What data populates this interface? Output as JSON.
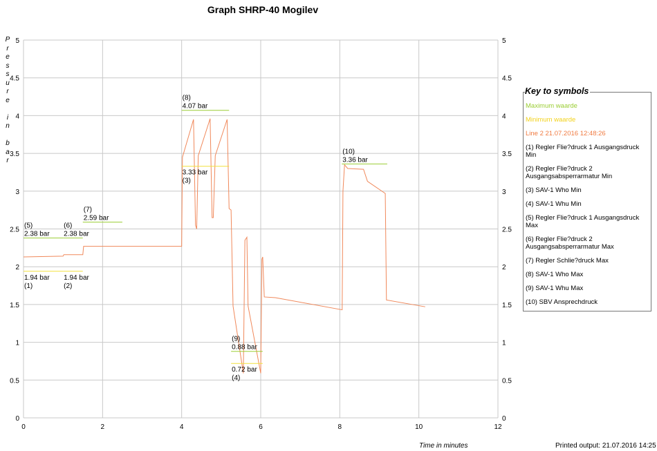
{
  "chart_data": {
    "type": "line",
    "title": "Graph SHRP-40 Mogilev",
    "xlabel": "Time in minutes",
    "ylabel": "Pressure in bar",
    "xlim": [
      0,
      12
    ],
    "ylim": [
      0,
      5
    ],
    "xticks": [
      0,
      2,
      4,
      6,
      8,
      10,
      12
    ],
    "yticks": [
      0,
      0.5,
      1,
      1.5,
      2,
      2.5,
      3,
      3.5,
      4,
      4.5,
      5
    ],
    "grid": true,
    "legend_placement": "right",
    "colors": {
      "max": "#9acd32",
      "min": "#f2e03c",
      "line": "#f0885a"
    },
    "series": [
      {
        "name": "Line 2 21.07.2016 12:48:26",
        "x": [
          0,
          1.0,
          1.02,
          1.5,
          1.52,
          4.0,
          4.02,
          4.3,
          4.35,
          4.38,
          4.42,
          4.72,
          4.77,
          4.8,
          4.85,
          5.15,
          5.2,
          5.25,
          5.3,
          5.56,
          5.6,
          5.65,
          5.68,
          6.0,
          6.03,
          6.05,
          6.09,
          6.37,
          8.06,
          8.08,
          8.12,
          8.2,
          8.6,
          8.7,
          9.15,
          9.18,
          10.16
        ],
        "y": [
          2.13,
          2.14,
          2.16,
          2.16,
          2.27,
          2.27,
          3.45,
          3.95,
          2.55,
          2.5,
          3.47,
          3.96,
          2.65,
          2.65,
          3.47,
          3.95,
          2.77,
          2.75,
          1.48,
          0.59,
          2.35,
          2.39,
          1.48,
          0.59,
          2.1,
          2.13,
          1.6,
          1.59,
          1.43,
          3.0,
          3.35,
          3.3,
          3.29,
          3.13,
          2.97,
          1.56,
          1.47
        ]
      }
    ],
    "reference_lines": [
      {
        "id": "(1)",
        "kind": "min",
        "value": 1.94,
        "label": "1.94 bar",
        "x": [
          0,
          1.0
        ]
      },
      {
        "id": "(5)",
        "kind": "max",
        "value": 2.38,
        "label": "2.38 bar",
        "x": [
          0,
          1.0
        ]
      },
      {
        "id": "(2)",
        "kind": "min",
        "value": 1.94,
        "label": "1.94 bar",
        "x": [
          1.0,
          1.5
        ]
      },
      {
        "id": "(6)",
        "kind": "max",
        "value": 2.38,
        "label": "2.38 bar",
        "x": [
          1.0,
          1.5
        ]
      },
      {
        "id": "(7)",
        "kind": "max",
        "value": 2.59,
        "label": "2.59 bar",
        "x": [
          1.5,
          2.5
        ]
      },
      {
        "id": "(8)",
        "kind": "max",
        "value": 4.07,
        "label": "4.07 bar",
        "x": [
          4.0,
          5.2
        ]
      },
      {
        "id": "(3)",
        "kind": "min",
        "value": 3.33,
        "label": "3.33 bar",
        "x": [
          4.0,
          5.2
        ]
      },
      {
        "id": "(9)",
        "kind": "max",
        "value": 0.88,
        "label": "0.88 bar",
        "x": [
          5.25,
          6.05
        ]
      },
      {
        "id": "(4)",
        "kind": "min",
        "value": 0.72,
        "label": "0.72 bar",
        "x": [
          5.25,
          6.05
        ]
      },
      {
        "id": "(10)",
        "kind": "max",
        "value": 3.36,
        "label": "3.36 bar",
        "x": [
          8.05,
          9.2
        ]
      }
    ]
  },
  "legend": {
    "title": "Key to symbols",
    "max_label": "Maximum waarde",
    "min_label": "Minimum waarde",
    "line_label": "Line 2 21.07.2016 12:48:26",
    "items": [
      "(1) Regler Flie?druck 1 Ausgangsdruck Min",
      "(2) Regler Flie?druck 2 Ausgangsabsperrarmatur Min",
      "(3) SAV-1 Who Min",
      "(4) SAV-1 Whu Min",
      "(5) Regler Flie?druck 1 Ausgangsdruck Max",
      "(6) Regler Flie?druck 2 Ausgangsabsperrarmatur Max",
      "(7) Regler Schlie?druck Max",
      "(8) SAV-1 Who Max",
      "(9) SAV-1 Whu Max",
      "(10) SBV Ansprechdruck"
    ]
  },
  "footer": {
    "printed": "Printed output: 21.07.2016 14:25"
  }
}
